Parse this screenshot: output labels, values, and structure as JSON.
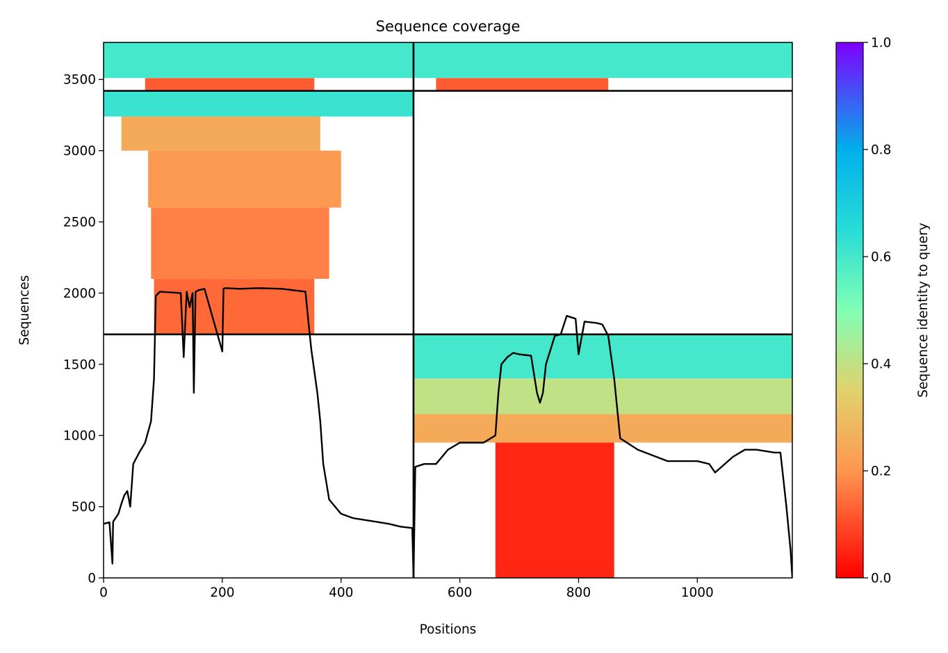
{
  "chart_data": {
    "type": "heatmap",
    "title": "Sequence coverage",
    "xlabel": "Positions",
    "ylabel": "Sequences",
    "xlim": [
      0,
      1160
    ],
    "ylim": [
      0,
      3760
    ],
    "x_ticks": [
      0,
      200,
      400,
      600,
      800,
      1000
    ],
    "y_ticks": [
      0,
      500,
      1000,
      1500,
      2000,
      2500,
      3000,
      3500
    ],
    "colorbar": {
      "label": "Sequence identity to query",
      "range": [
        0,
        1
      ],
      "ticks": [
        "0.0",
        "0.2",
        "0.4",
        "0.6",
        "0.8",
        "1.0"
      ],
      "colormap": "rainbow"
    },
    "chain_boundary_x": 522,
    "chain_boundary_y": [
      1710,
      3420
    ],
    "blocks": [
      {
        "name": "chain2-paired",
        "x0": 522,
        "x1": 1160,
        "y0": 0,
        "y1": 1710,
        "bands": [
          {
            "y0": 0,
            "y1": 950,
            "identity": 0.05,
            "x0": 660,
            "x1": 860
          },
          {
            "y0": 950,
            "y1": 1150,
            "identity": 0.25,
            "x0": 522,
            "x1": 1160
          },
          {
            "y0": 1150,
            "y1": 1400,
            "identity": 0.4,
            "x0": 522,
            "x1": 1160
          },
          {
            "y0": 1400,
            "y1": 1710,
            "identity": 0.6,
            "x0": 522,
            "x1": 1160
          }
        ]
      },
      {
        "name": "chain1-paired",
        "x0": 0,
        "x1": 522,
        "y0": 1710,
        "y1": 3420,
        "bands": [
          {
            "y0": 1710,
            "y1": 2100,
            "identity": 0.14,
            "x0": 85,
            "x1": 355
          },
          {
            "y0": 2100,
            "y1": 2600,
            "identity": 0.17,
            "x0": 80,
            "x1": 380
          },
          {
            "y0": 2600,
            "y1": 3000,
            "identity": 0.21,
            "x0": 75,
            "x1": 400
          },
          {
            "y0": 3000,
            "y1": 3240,
            "identity": 0.25,
            "x0": 30,
            "x1": 365
          },
          {
            "y0": 3240,
            "y1": 3420,
            "identity": 0.62,
            "x0": 0,
            "x1": 522
          }
        ]
      },
      {
        "name": "top-unpaired-chain1",
        "x0": 0,
        "x1": 522,
        "y0": 3420,
        "y1": 3760,
        "bands": [
          {
            "y0": 3420,
            "y1": 3510,
            "identity": 0.12,
            "x0": 70,
            "x1": 355
          },
          {
            "y0": 3510,
            "y1": 3760,
            "identity": 0.6,
            "x0": 0,
            "x1": 522
          }
        ]
      },
      {
        "name": "top-unpaired-chain2",
        "x0": 522,
        "x1": 1160,
        "y0": 3420,
        "y1": 3760,
        "bands": [
          {
            "y0": 3420,
            "y1": 3510,
            "identity": 0.12,
            "x0": 560,
            "x1": 850
          },
          {
            "y0": 3510,
            "y1": 3760,
            "identity": 0.6,
            "x0": 522,
            "x1": 1160
          }
        ]
      }
    ],
    "coverage_line": {
      "x": [
        0,
        10,
        15,
        16,
        17,
        25,
        30,
        35,
        40,
        45,
        50,
        60,
        70,
        80,
        85,
        88,
        95,
        130,
        135,
        140,
        145,
        150,
        152,
        155,
        160,
        170,
        200,
        202,
        205,
        230,
        260,
        300,
        320,
        340,
        345,
        350,
        355,
        360,
        365,
        370,
        380,
        400,
        420,
        450,
        480,
        500,
        520,
        522,
        525,
        540,
        560,
        580,
        600,
        620,
        640,
        660,
        665,
        670,
        680,
        690,
        700,
        720,
        730,
        735,
        740,
        745,
        760,
        770,
        780,
        795,
        800,
        810,
        830,
        840,
        850,
        860,
        870,
        900,
        950,
        1000,
        1020,
        1030,
        1060,
        1080,
        1100,
        1130,
        1140,
        1150,
        1157,
        1160
      ],
      "y": [
        380,
        390,
        100,
        390,
        400,
        450,
        520,
        580,
        610,
        500,
        800,
        880,
        950,
        1100,
        1400,
        1980,
        2010,
        2000,
        1550,
        2010,
        1900,
        2000,
        1300,
        2010,
        2020,
        2030,
        1590,
        2030,
        2035,
        2030,
        2035,
        2030,
        2020,
        2010,
        1800,
        1600,
        1450,
        1300,
        1100,
        800,
        550,
        450,
        420,
        400,
        380,
        360,
        350,
        0,
        780,
        800,
        800,
        900,
        950,
        950,
        950,
        1000,
        1300,
        1500,
        1550,
        1580,
        1570,
        1560,
        1300,
        1230,
        1300,
        1500,
        1700,
        1710,
        1840,
        1820,
        1570,
        1800,
        1790,
        1780,
        1700,
        1400,
        980,
        900,
        820,
        820,
        800,
        740,
        850,
        900,
        900,
        880,
        880,
        500,
        200,
        0
      ]
    }
  }
}
